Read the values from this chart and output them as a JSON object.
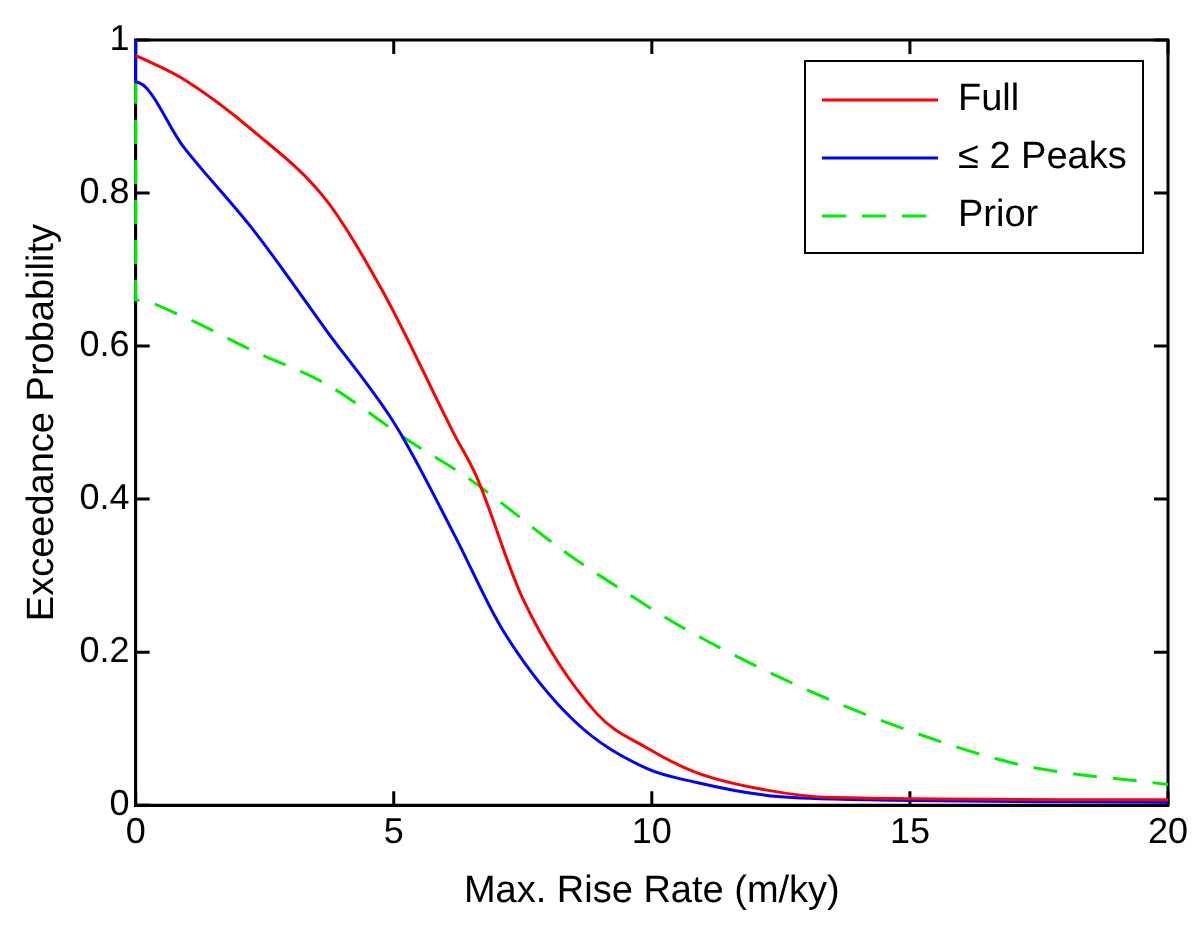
{
  "chart_data": {
    "type": "line",
    "xlabel": "Max. Rise Rate (m/ky)",
    "ylabel": "Exceedance Probability",
    "xlim": [
      0,
      20
    ],
    "xticks": [
      0,
      5,
      10,
      15,
      20
    ],
    "ylim": [
      0,
      1
    ],
    "yticks": [
      0,
      0.2,
      0.4,
      0.6,
      0.8,
      1
    ],
    "grid": false,
    "legend": "top right",
    "marker": "none",
    "series": [
      {
        "name": "Full",
        "color": "#ff0000",
        "line_style": "solid",
        "x": [
          0,
          0.9,
          2.3,
          3.7,
          4.8,
          6.17,
          6.6,
          7.5,
          8.93,
          9.9,
          10.85,
          12.2,
          13.5,
          20
        ],
        "values": [
          0.98,
          0.95,
          0.88,
          0.79,
          0.67,
          0.485,
          0.43,
          0.27,
          0.12,
          0.075,
          0.043,
          0.02,
          0.01,
          0.007
        ]
      },
      {
        "name": "≤ 2 Peaks",
        "color": "#0000ff",
        "line_style": "solid",
        "x": [
          0,
          0,
          0.93,
          2.3,
          3.7,
          5.05,
          6.17,
          7.12,
          8.5,
          9.9,
          10.85,
          12.2,
          13.5,
          20
        ],
        "values": [
          1,
          0.945,
          0.86,
          0.75,
          0.62,
          0.495,
          0.354,
          0.228,
          0.11,
          0.048,
          0.03,
          0.013,
          0.008,
          0.004
        ]
      },
      {
        "name": "Prior",
        "color": "#00ee00",
        "line_style": "dashed",
        "x": [
          0,
          0,
          0.93,
          2.3,
          3.7,
          5.3,
          6.45,
          8.4,
          9.5,
          10.6,
          12.8,
          15,
          17.2,
          20
        ],
        "values": [
          1,
          0.66,
          0.638,
          0.593,
          0.55,
          0.476,
          0.427,
          0.327,
          0.278,
          0.232,
          0.157,
          0.097,
          0.052,
          0.027
        ]
      }
    ]
  }
}
